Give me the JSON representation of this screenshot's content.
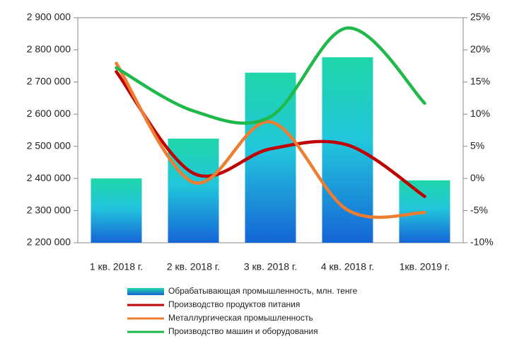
{
  "chart_data": {
    "type": "bar-line",
    "categories": [
      "1 кв. 2018 г.",
      "2 кв. 2018 г.",
      "3 кв. 2018 г.",
      "4 кв. 2018 г.",
      "1кв. 2019 г."
    ],
    "series": [
      {
        "name": "Обрабатывающая промышленность, млн. тенге",
        "type": "bar",
        "color": [
          "#1fd6a8",
          "#1565d6"
        ],
        "values": [
          2400000,
          2524000,
          2729000,
          2777000,
          2394000
        ]
      },
      {
        "name": "Производство продуктов питания",
        "type": "line",
        "axis": "y2",
        "color": "#c00000",
        "values": [
          16.6,
          0.8,
          4.6,
          5.2,
          -2.8
        ]
      },
      {
        "name": "Металлургическая промышленность",
        "type": "line",
        "axis": "y2",
        "color": "#ed7d31",
        "values": [
          17.9,
          -0.6,
          8.8,
          -4.9,
          -5.3
        ]
      },
      {
        "name": "Производство машин и оборудования",
        "type": "line",
        "axis": "y2",
        "color": "#1fb84a",
        "values": [
          17.2,
          10.5,
          9.6,
          23.4,
          11.7
        ]
      }
    ],
    "ylim": [
      2200000,
      2900000
    ],
    "yticks": [
      {
        "value": 2200000,
        "label": "2 200 000"
      },
      {
        "value": 2300000,
        "label": "2 300 000"
      },
      {
        "value": 2400000,
        "label": "2 400 000"
      },
      {
        "value": 2500000,
        "label": "2 500 000"
      },
      {
        "value": 2600000,
        "label": "2 600 000"
      },
      {
        "value": 2700000,
        "label": "2 700 000"
      },
      {
        "value": 2800000,
        "label": "2 800 000"
      },
      {
        "value": 2900000,
        "label": "2 900 000"
      }
    ],
    "y2lim": [
      -10,
      25
    ],
    "y2ticks": [
      {
        "value": -10,
        "label": "-10%"
      },
      {
        "value": -5,
        "label": "-5%"
      },
      {
        "value": 0,
        "label": "0%"
      },
      {
        "value": 5,
        "label": "5%"
      },
      {
        "value": 10,
        "label": "10%"
      },
      {
        "value": 15,
        "label": "15%"
      },
      {
        "value": 20,
        "label": "20%"
      },
      {
        "value": 25,
        "label": "25%"
      }
    ],
    "legend": "bottom"
  }
}
